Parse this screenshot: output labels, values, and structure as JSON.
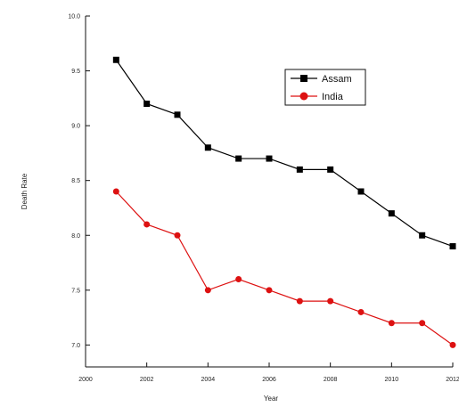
{
  "chart_data": {
    "type": "line",
    "title": "",
    "xlabel": "Year",
    "ylabel": "Death Rate",
    "xlim": [
      2000,
      2012
    ],
    "ylim": [
      6.8,
      10.0
    ],
    "x_ticks": [
      2000,
      2002,
      2004,
      2006,
      2008,
      2010,
      2012
    ],
    "y_ticks": [
      7.0,
      7.5,
      8.0,
      8.5,
      9.0,
      9.5,
      10.0
    ],
    "x_tick_labels": [
      "2000",
      "2002",
      "2004",
      "2006",
      "2008",
      "2010",
      "2012"
    ],
    "y_tick_labels": [
      "7.0",
      "7.5",
      "8.0",
      "8.5",
      "9.0",
      "9.5",
      "10.0"
    ],
    "grid": false,
    "legend_position": "top-right",
    "x": [
      2001,
      2002,
      2003,
      2004,
      2005,
      2006,
      2007,
      2008,
      2009,
      2010,
      2011,
      2012
    ],
    "series": [
      {
        "name": "Assam",
        "color": "#000000",
        "marker": "square",
        "values": [
          9.6,
          9.2,
          9.1,
          8.8,
          8.7,
          8.7,
          8.6,
          8.6,
          8.4,
          8.2,
          8.0,
          7.9
        ]
      },
      {
        "name": "India",
        "color": "#dd1111",
        "marker": "circle",
        "values": [
          8.4,
          8.1,
          8.0,
          7.5,
          7.6,
          7.5,
          7.4,
          7.4,
          7.3,
          7.2,
          7.2,
          7.0
        ]
      }
    ]
  }
}
